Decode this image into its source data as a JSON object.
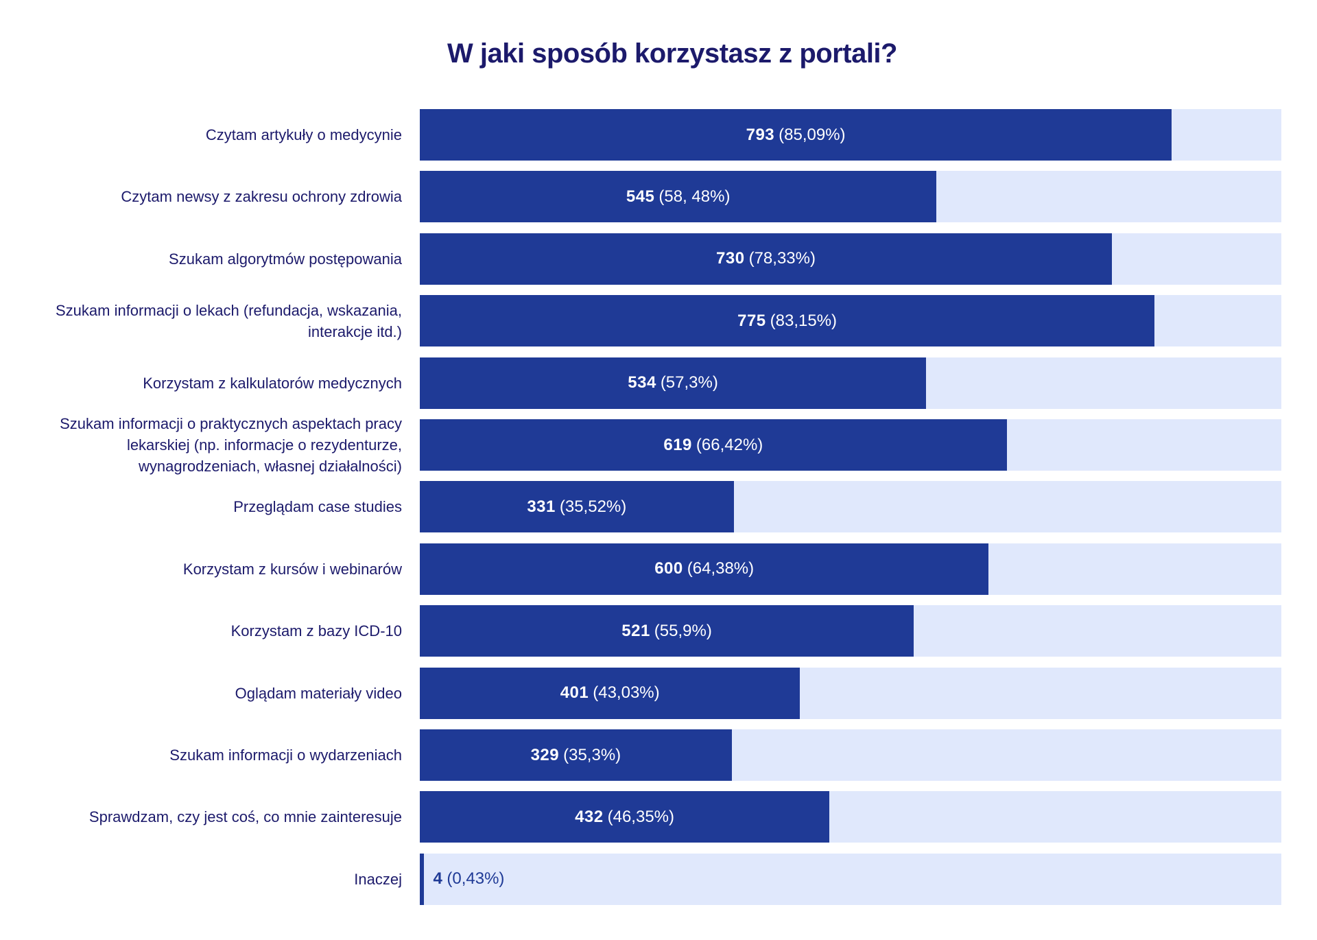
{
  "chart_data": {
    "type": "bar",
    "orientation": "horizontal",
    "title": "W jaki sposób korzystasz z portali?",
    "colors": {
      "bar": "#1f3a96",
      "track": "#e0e8fc",
      "text": "#1c1a6b"
    },
    "grid": false,
    "categories": [
      "Czytam artykuły o medycynie",
      "Czytam newsy z zakresu ochrony zdrowia",
      "Szukam algorytmów postępowania",
      "Szukam informacji o lekach (refundacja, wskazania, interakcje itd.)",
      "Korzystam z kalkulatorów medycznych",
      "Szukam informacji o praktycznych aspektach pracy lekarskiej (np. informacje o rezydenturze, wynagrodzeniach, własnej działalności)",
      "Przeglądam case studies",
      "Korzystam z kursów i webinarów",
      "Korzystam z bazy ICD-10",
      "Oglądam materiały video",
      "Szukam informacji o wydarzeniach",
      "Sprawdzam, czy jest coś, co mnie zainteresuje",
      "Inaczej"
    ],
    "values": [
      793,
      545,
      730,
      775,
      534,
      619,
      331,
      600,
      521,
      401,
      329,
      432,
      4
    ],
    "percent_values": [
      85.09,
      58.48,
      78.33,
      83.15,
      57.3,
      66.42,
      35.52,
      64.38,
      55.9,
      43.03,
      35.3,
      46.35,
      0.43
    ],
    "value_labels": [
      "793",
      "545",
      "730",
      "775",
      "534",
      "619",
      "331",
      "600",
      "521",
      "401",
      "329",
      "432",
      "4"
    ],
    "percent_labels": [
      "(85,09%)",
      "(58, 48%)",
      "(78,33%)",
      "(83,15%)",
      "(57,3%)",
      "(66,42%)",
      "(35,52%)",
      "(64,38%)",
      "(55,9%)",
      "(43,03%)",
      "(35,3%)",
      "(46,35%)",
      "(0,43%)"
    ]
  }
}
